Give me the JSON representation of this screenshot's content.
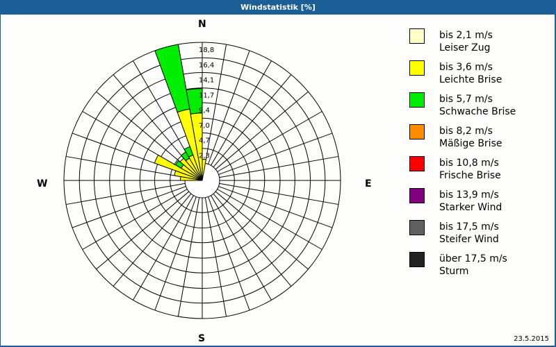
{
  "window": {
    "title": "Windstatistik [%]",
    "date": "23.5.2015"
  },
  "compass": {
    "n": "N",
    "e": "E",
    "s": "S",
    "w": "W"
  },
  "legend": [
    {
      "range": "bis 2,1 m/s",
      "name": "Leiser Zug",
      "color": "#ffffc8"
    },
    {
      "range": "bis 3,6 m/s",
      "name": "Leichte Brise",
      "color": "#ffff00"
    },
    {
      "range": "bis 5,7 m/s",
      "name": "Schwache Brise",
      "color": "#00ee00"
    },
    {
      "range": "bis 8,2 m/s",
      "name": "Mäßige Brise",
      "color": "#ff8c00"
    },
    {
      "range": "bis 10,8 m/s",
      "name": "Frische Brise",
      "color": "#ff0000"
    },
    {
      "range": "bis 13,9 m/s",
      "name": "Starker Wind",
      "color": "#800080"
    },
    {
      "range": "bis 17,5 m/s",
      "name": "Steifer Wind",
      "color": "#606060"
    },
    {
      "range": "über 17,5 m/s",
      "name": "Sturm",
      "color": "#222222"
    }
  ],
  "chart_data": {
    "type": "polar-stacked-bar (wind rose)",
    "title": "Windstatistik [%]",
    "unit": "%",
    "sector_width_deg": 10,
    "radial_ticks": [
      "2,3",
      "4,7",
      "7,0",
      "9,4",
      "11,7",
      "14,1",
      "16,4",
      "18,8"
    ],
    "radial_tick_values": [
      2.3,
      4.7,
      7.0,
      9.4,
      11.7,
      14.1,
      16.4,
      18.8
    ],
    "rmax": 18.8,
    "direction_labels": [
      "N",
      "E",
      "S",
      "W"
    ],
    "series_names": [
      "bis 2,1 m/s",
      "bis 3,6 m/s",
      "bis 5,7 m/s",
      "bis 8,2 m/s",
      "bis 10,8 m/s",
      "bis 13,9 m/s",
      "bis 17,5 m/s",
      "über 17,5 m/s"
    ],
    "sectors": [
      {
        "from_deg": 350,
        "to_deg": 360,
        "values": {
          "bis 3,6 m/s": 7.8,
          "bis 5,7 m/s": 3.8
        },
        "total": 11.6
      },
      {
        "from_deg": 340,
        "to_deg": 350,
        "values": {
          "bis 3,6 m/s": 8.6,
          "bis 5,7 m/s": 10.2
        },
        "total": 18.8
      },
      {
        "from_deg": 330,
        "to_deg": 340,
        "values": {
          "bis 3,6 m/s": 1.5,
          "bis 5,7 m/s": 1.4
        },
        "total": 2.9
      },
      {
        "from_deg": 320,
        "to_deg": 330,
        "values": {
          "bis 3,6 m/s": 1.3,
          "bis 5,7 m/s": 1.1
        },
        "total": 2.4
      },
      {
        "from_deg": 310,
        "to_deg": 320,
        "values": {
          "bis 3,6 m/s": 1.8
        },
        "total": 1.8
      },
      {
        "from_deg": 300,
        "to_deg": 310,
        "values": {
          "bis 3,6 m/s": 1.1,
          "bis 5,7 m/s": 1.0
        },
        "total": 2.1
      },
      {
        "from_deg": 290,
        "to_deg": 300,
        "values": {
          "bis 3,6 m/s": 5.2
        },
        "total": 5.2
      },
      {
        "from_deg": 280,
        "to_deg": 290,
        "values": {
          "bis 3,6 m/s": 1.7
        },
        "total": 1.7
      },
      {
        "from_deg": 270,
        "to_deg": 280,
        "values": {
          "bis 3,6 m/s": 0.7
        },
        "total": 0.7
      },
      {
        "from_deg": 0,
        "to_deg": 10,
        "values": {
          "bis 3,6 m/s": 0.6
        },
        "total": 0.6
      }
    ]
  }
}
